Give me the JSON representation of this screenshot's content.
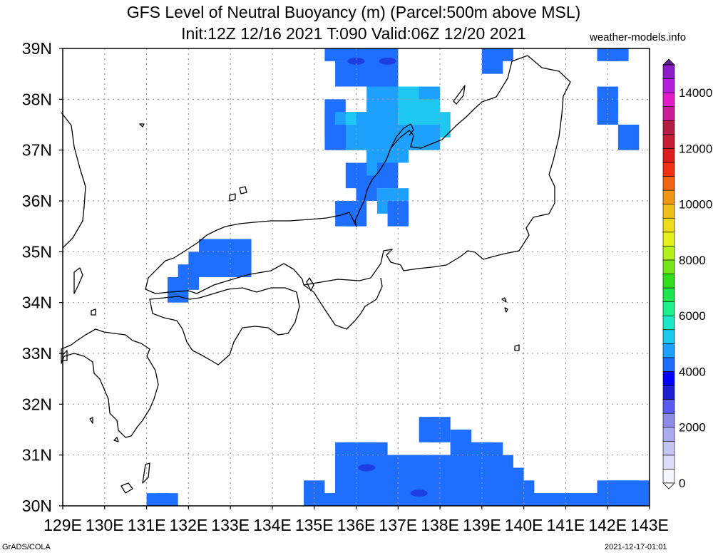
{
  "header": {
    "title_line1": "GFS Level of Neutral Buoyancy (m) (Parcel:500m above MSL)",
    "title_line2": "Init:12Z 12/16 2021 T:090 Valid:06Z 12/20 2021",
    "credit": "weather-models.info"
  },
  "footer": {
    "left": "GrADS/COLA",
    "right": "2021-12-17-01:01"
  },
  "map": {
    "lon_range": [
      129,
      143
    ],
    "lat_range": [
      30,
      39
    ],
    "grid": true,
    "lon_labels": [
      "129E",
      "130E",
      "131E",
      "132E",
      "133E",
      "134E",
      "135E",
      "136E",
      "137E",
      "138E",
      "139E",
      "140E",
      "141E",
      "142E",
      "143E"
    ],
    "lat_labels": [
      "30N",
      "31N",
      "32N",
      "33N",
      "34N",
      "35N",
      "36N",
      "37N",
      "38N",
      "39N"
    ]
  },
  "colorbar": {
    "labels": [
      "0",
      "2000",
      "4000",
      "6000",
      "8000",
      "10000",
      "12000",
      "14000"
    ],
    "min": 0,
    "max": 15000,
    "step": 500,
    "colors": [
      "#f5f5ff",
      "#dcdcfa",
      "#c4c4f2",
      "#aaaaee",
      "#8c8ce6",
      "#5a5af0",
      "#1e1ed2",
      "#0000ff",
      "#1e6eff",
      "#1ea0ff",
      "#1ec8f0",
      "#1ee6c8",
      "#1ef08c",
      "#1ee650",
      "#32dc1e",
      "#78e61e",
      "#b4f01e",
      "#e6f01e",
      "#f0dc1e",
      "#f0be1e",
      "#f09614",
      "#f06414",
      "#f03214",
      "#dc1e1e",
      "#c81e32",
      "#b41e46",
      "#c81e96",
      "#e11ec8",
      "#b41edc",
      "#8c1ec8",
      "#5a1e8c"
    ]
  },
  "field": {
    "cells": [
      [
        135.5,
        39.0,
        "#1e6eff"
      ],
      [
        135.75,
        39.0,
        "#1e6eff"
      ],
      [
        136.0,
        39.0,
        "#1e6eff"
      ],
      [
        136.25,
        39.0,
        "#1e6eff"
      ],
      [
        136.5,
        39.0,
        "#1e6eff"
      ],
      [
        136.75,
        39.0,
        "#1e6eff"
      ],
      [
        136.0,
        38.75,
        "#1e6eff"
      ],
      [
        136.25,
        38.75,
        "#1e6eff"
      ],
      [
        136.5,
        38.75,
        "#1e6eff"
      ],
      [
        136.75,
        38.75,
        "#1e6eff"
      ],
      [
        135.75,
        38.5,
        "#1e6eff"
      ],
      [
        136.25,
        38.5,
        "#1e6eff"
      ],
      [
        136.5,
        38.5,
        "#1e6eff"
      ],
      [
        136.75,
        38.5,
        "#1e6eff"
      ],
      [
        136.75,
        38.25,
        "#1e6eff"
      ],
      [
        136.5,
        38.0,
        "#1ea0ff"
      ],
      [
        136.75,
        38.0,
        "#1ea0ff"
      ],
      [
        137.0,
        38.0,
        "#1ea0ff"
      ],
      [
        137.25,
        38.0,
        "#1ec8f0"
      ],
      [
        137.5,
        38.0,
        "#1ec8f0"
      ],
      [
        137.75,
        38.0,
        "#1ea0ff"
      ],
      [
        135.5,
        37.75,
        "#1e6eff"
      ],
      [
        136.5,
        37.75,
        "#1ea0ff"
      ],
      [
        136.75,
        37.75,
        "#1ea0ff"
      ],
      [
        137.25,
        37.75,
        "#1ec8f0"
      ],
      [
        137.5,
        37.75,
        "#1ec8f0"
      ],
      [
        137.75,
        37.75,
        "#1ec8f0"
      ],
      [
        135.5,
        37.5,
        "#1e6eff"
      ],
      [
        135.75,
        37.5,
        "#1ea0ff"
      ],
      [
        136.0,
        37.5,
        "#1ec8f0"
      ],
      [
        136.25,
        37.5,
        "#1ea0ff"
      ],
      [
        136.5,
        37.5,
        "#1ea0ff"
      ],
      [
        137.25,
        37.5,
        "#1ec8f0"
      ],
      [
        137.5,
        37.5,
        "#1ec8f0"
      ],
      [
        137.75,
        37.5,
        "#1ec8f0"
      ],
      [
        138.0,
        37.5,
        "#1ec8f0"
      ],
      [
        135.5,
        37.25,
        "#1e6eff"
      ],
      [
        135.75,
        37.25,
        "#1e6eff"
      ],
      [
        136.0,
        37.25,
        "#1ea0ff"
      ],
      [
        136.25,
        37.25,
        "#1ea0ff"
      ],
      [
        136.5,
        37.25,
        "#1ea0ff"
      ],
      [
        136.75,
        37.25,
        "#1ea0ff"
      ],
      [
        137.0,
        37.25,
        "#1ea0ff"
      ],
      [
        137.25,
        37.25,
        "#1ea0ff"
      ],
      [
        137.5,
        37.25,
        "#1ea0ff"
      ],
      [
        137.75,
        37.25,
        "#1ea0ff"
      ],
      [
        136.5,
        37.0,
        "#1ea0ff"
      ],
      [
        136.75,
        37.0,
        "#1ea0ff"
      ],
      [
        137.0,
        37.0,
        "#1ea0ff"
      ],
      [
        136.5,
        36.75,
        "#1ea0ff"
      ],
      [
        136.75,
        36.75,
        "#1ea0ff"
      ],
      [
        136.0,
        36.5,
        "#1e6eff"
      ],
      [
        136.25,
        36.5,
        "#1e6eff"
      ],
      [
        136.5,
        36.5,
        "#1ea0ff"
      ],
      [
        136.75,
        36.5,
        "#1e6eff"
      ],
      [
        136.25,
        36.25,
        "#1e6eff"
      ],
      [
        136.75,
        36.0,
        "#1ea0ff"
      ],
      [
        137.0,
        36.0,
        "#1ea0ff"
      ],
      [
        137.0,
        35.75,
        "#1e6eff"
      ],
      [
        135.75,
        35.75,
        "#1e6eff"
      ],
      [
        136.0,
        35.75,
        "#1e6eff"
      ],
      [
        139.5,
        39.0,
        "#1e6eff"
      ],
      [
        139.25,
        38.75,
        "#1e6eff"
      ],
      [
        142.0,
        39.0,
        "#1e6eff"
      ],
      [
        142.25,
        39.0,
        "#1e6eff"
      ],
      [
        142.0,
        38.0,
        "#1e6eff"
      ],
      [
        142.0,
        37.75,
        "#1e6eff"
      ],
      [
        142.5,
        37.25,
        "#1e6eff"
      ],
      [
        132.5,
        35.0,
        "#1e6eff"
      ],
      [
        132.75,
        35.0,
        "#1e6eff"
      ],
      [
        133.0,
        35.0,
        "#1e6eff"
      ],
      [
        133.25,
        35.0,
        "#1e6eff"
      ],
      [
        132.25,
        34.75,
        "#1e6eff"
      ],
      [
        132.5,
        34.75,
        "#1e6eff"
      ],
      [
        132.75,
        34.75,
        "#1e6eff"
      ],
      [
        133.0,
        34.75,
        "#1e6eff"
      ],
      [
        133.25,
        34.75,
        "#1e6eff"
      ],
      [
        132.0,
        34.5,
        "#1e6eff"
      ],
      [
        131.75,
        34.25,
        "#1e6eff"
      ],
      [
        131.25,
        30.0,
        "#1e6eff"
      ],
      [
        131.5,
        30.0,
        "#1e6eff"
      ],
      [
        137.75,
        31.5,
        "#1e6eff"
      ],
      [
        138.0,
        31.5,
        "#1e6eff"
      ],
      [
        138.5,
        31.25,
        "#1e6eff"
      ],
      [
        135.75,
        31.0,
        "#1e6eff"
      ],
      [
        136.0,
        31.0,
        "#1e6eff"
      ],
      [
        136.25,
        31.0,
        "#1e6eff"
      ],
      [
        136.5,
        31.0,
        "#1e6eff"
      ],
      [
        138.5,
        31.0,
        "#1e6eff"
      ],
      [
        138.75,
        31.0,
        "#1e6eff"
      ],
      [
        139.0,
        31.0,
        "#1e6eff"
      ],
      [
        139.25,
        31.0,
        "#1e6eff"
      ],
      [
        135.75,
        30.75,
        "#1e6eff"
      ],
      [
        136.0,
        30.75,
        "#1e6eff"
      ],
      [
        136.25,
        30.75,
        "#1e6eff"
      ],
      [
        136.5,
        30.75,
        "#1e6eff"
      ],
      [
        136.75,
        30.75,
        "#1e6eff"
      ],
      [
        137.0,
        30.75,
        "#1e6eff"
      ],
      [
        137.25,
        30.75,
        "#1e6eff"
      ],
      [
        137.5,
        30.75,
        "#1e6eff"
      ],
      [
        137.75,
        30.75,
        "#1e6eff"
      ],
      [
        138.0,
        30.75,
        "#1e6eff"
      ],
      [
        138.25,
        30.75,
        "#1e6eff"
      ],
      [
        138.5,
        30.75,
        "#1e6eff"
      ],
      [
        138.75,
        30.75,
        "#1e6eff"
      ],
      [
        139.0,
        30.75,
        "#1e6eff"
      ],
      [
        139.25,
        30.75,
        "#1e6eff"
      ],
      [
        139.5,
        30.75,
        "#1e6eff"
      ],
      [
        135.75,
        30.5,
        "#1e6eff"
      ],
      [
        136.0,
        30.5,
        "#1e6eff"
      ],
      [
        136.25,
        30.5,
        "#1e6eff"
      ],
      [
        136.5,
        30.5,
        "#1e6eff"
      ],
      [
        136.75,
        30.5,
        "#1e6eff"
      ],
      [
        137.0,
        30.5,
        "#1e6eff"
      ],
      [
        137.25,
        30.5,
        "#1e6eff"
      ],
      [
        137.5,
        30.5,
        "#1e6eff"
      ],
      [
        137.75,
        30.5,
        "#1e6eff"
      ],
      [
        138.0,
        30.5,
        "#1e6eff"
      ],
      [
        138.25,
        30.5,
        "#1e6eff"
      ],
      [
        138.5,
        30.5,
        "#1e6eff"
      ],
      [
        138.75,
        30.5,
        "#1e6eff"
      ],
      [
        139.0,
        30.5,
        "#1e6eff"
      ],
      [
        139.25,
        30.5,
        "#1e6eff"
      ],
      [
        139.5,
        30.5,
        "#1e6eff"
      ],
      [
        139.75,
        30.5,
        "#1e6eff"
      ],
      [
        135.0,
        30.25,
        "#1e6eff"
      ],
      [
        135.75,
        30.25,
        "#1e6eff"
      ],
      [
        136.0,
        30.25,
        "#1e6eff"
      ],
      [
        136.25,
        30.25,
        "#1e6eff"
      ],
      [
        136.5,
        30.25,
        "#1e6eff"
      ],
      [
        136.75,
        30.25,
        "#1e6eff"
      ],
      [
        137.0,
        30.25,
        "#1e6eff"
      ],
      [
        137.25,
        30.25,
        "#1e6eff"
      ],
      [
        137.5,
        30.25,
        "#1e6eff"
      ],
      [
        137.75,
        30.25,
        "#1e6eff"
      ],
      [
        138.0,
        30.25,
        "#1e6eff"
      ],
      [
        138.25,
        30.25,
        "#1e6eff"
      ],
      [
        138.5,
        30.25,
        "#1e6eff"
      ],
      [
        138.75,
        30.25,
        "#1e6eff"
      ],
      [
        139.0,
        30.25,
        "#1e6eff"
      ],
      [
        139.25,
        30.25,
        "#1e6eff"
      ],
      [
        139.5,
        30.25,
        "#1e6eff"
      ],
      [
        139.75,
        30.25,
        "#1e6eff"
      ],
      [
        140.0,
        30.25,
        "#1e6eff"
      ],
      [
        142.0,
        30.25,
        "#1e6eff"
      ],
      [
        142.25,
        30.25,
        "#1e6eff"
      ],
      [
        142.5,
        30.25,
        "#1e6eff"
      ],
      [
        142.75,
        30.25,
        "#1e6eff"
      ],
      [
        135.0,
        30.0,
        "#1e6eff"
      ],
      [
        135.25,
        30.0,
        "#1e6eff"
      ],
      [
        135.5,
        30.0,
        "#1e6eff"
      ],
      [
        135.75,
        30.0,
        "#1e6eff"
      ],
      [
        136.0,
        30.0,
        "#1e6eff"
      ],
      [
        136.25,
        30.0,
        "#1e6eff"
      ],
      [
        136.5,
        30.0,
        "#1e6eff"
      ],
      [
        136.75,
        30.0,
        "#1e6eff"
      ],
      [
        137.0,
        30.0,
        "#1e6eff"
      ],
      [
        137.25,
        30.0,
        "#1e6eff"
      ],
      [
        137.5,
        30.0,
        "#1e6eff"
      ],
      [
        137.75,
        30.0,
        "#1e6eff"
      ],
      [
        138.0,
        30.0,
        "#1e6eff"
      ],
      [
        138.25,
        30.0,
        "#1e6eff"
      ],
      [
        138.5,
        30.0,
        "#1e6eff"
      ],
      [
        138.75,
        30.0,
        "#1e6eff"
      ],
      [
        139.0,
        30.0,
        "#1e6eff"
      ],
      [
        139.25,
        30.0,
        "#1e6eff"
      ],
      [
        139.5,
        30.0,
        "#1e6eff"
      ],
      [
        139.75,
        30.0,
        "#1e6eff"
      ],
      [
        140.0,
        30.0,
        "#1e6eff"
      ],
      [
        140.25,
        30.0,
        "#1e6eff"
      ],
      [
        140.5,
        30.0,
        "#1e6eff"
      ],
      [
        140.75,
        30.0,
        "#1e6eff"
      ],
      [
        141.0,
        30.0,
        "#1e6eff"
      ],
      [
        141.25,
        30.0,
        "#1e6eff"
      ],
      [
        141.5,
        30.0,
        "#1e6eff"
      ],
      [
        141.75,
        30.0,
        "#1e6eff"
      ],
      [
        142.0,
        30.0,
        "#1e6eff"
      ],
      [
        142.25,
        30.0,
        "#1e6eff"
      ],
      [
        142.5,
        30.0,
        "#1e6eff"
      ],
      [
        142.75,
        30.0,
        "#1e6eff"
      ]
    ],
    "cells_dark": [
      [
        136.75,
        38.75
      ],
      [
        136.0,
        38.75
      ],
      [
        136.25,
        30.75
      ],
      [
        137.5,
        30.25
      ]
    ]
  }
}
